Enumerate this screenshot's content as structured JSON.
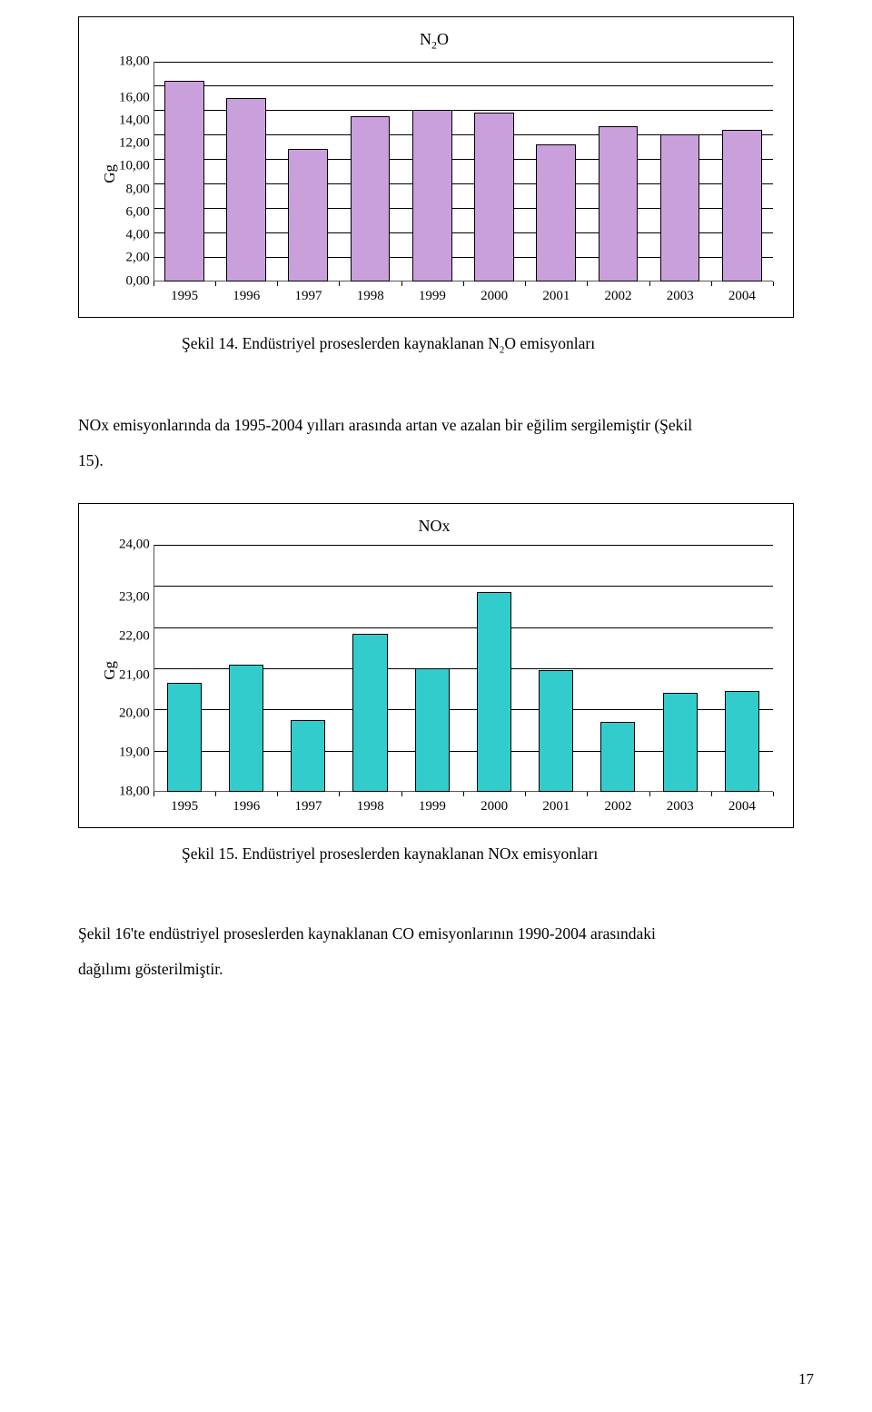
{
  "page_number": "17",
  "text": {
    "caption14": "Şekil 14. Endüstriyel proseslerden kaynaklanan N",
    "caption14_sub": "2",
    "caption14_tail": "O emisyonları",
    "para1_line1": "NOx emisyonlarında da 1995-2004 yılları arasında artan ve azalan bir eğilim sergilemiştir (Şekil",
    "para1_line2": "15).",
    "caption15": "Şekil 15. Endüstriyel proseslerden kaynaklanan NOx emisyonları",
    "para2_line1": "Şekil 16'te endüstriyel proseslerden kaynaklanan CO emisyonlarının 1990-2004 arasındaki",
    "para2_line2": "dağılımı gösterilmiştir."
  },
  "chart_n2o": {
    "type": "bar",
    "title_html": "N<sub>2</sub>O",
    "ylabel": "Gg",
    "ymin": 0.0,
    "ymax": 18.0,
    "yticks": [
      "18,00",
      "16,00",
      "14,00",
      "12,00",
      "10,00",
      "8,00",
      "6,00",
      "4,00",
      "2,00",
      "0,00"
    ],
    "categories": [
      "1995",
      "1996",
      "1997",
      "1998",
      "1999",
      "2000",
      "2001",
      "2002",
      "2003",
      "2004"
    ],
    "values": [
      16.4,
      15.0,
      10.8,
      13.5,
      14.0,
      13.8,
      11.2,
      12.7,
      12.0,
      12.4
    ],
    "bar_color": "#c9a0dc",
    "bar_border": "#000000",
    "bar_width_pct": 64,
    "grid_color": "#000000",
    "axis_font_size": 15,
    "title_font_size": 18,
    "background": "#ffffff"
  },
  "chart_nox": {
    "type": "bar",
    "title": "NOx",
    "ylabel": "Gg",
    "ymin": 18.0,
    "ymax": 24.0,
    "yticks": [
      "24,00",
      "23,00",
      "22,00",
      "21,00",
      "20,00",
      "19,00",
      "18,00"
    ],
    "categories": [
      "1995",
      "1996",
      "1997",
      "1998",
      "1999",
      "2000",
      "2001",
      "2002",
      "2003",
      "2004"
    ],
    "values": [
      20.65,
      21.1,
      19.75,
      21.85,
      21.0,
      22.85,
      20.95,
      19.7,
      20.4,
      20.45
    ],
    "bar_color": "#33cccc",
    "bar_border": "#000000",
    "bar_width_pct": 56,
    "grid_color": "#000000",
    "axis_font_size": 15,
    "title_font_size": 18,
    "background": "#ffffff"
  }
}
